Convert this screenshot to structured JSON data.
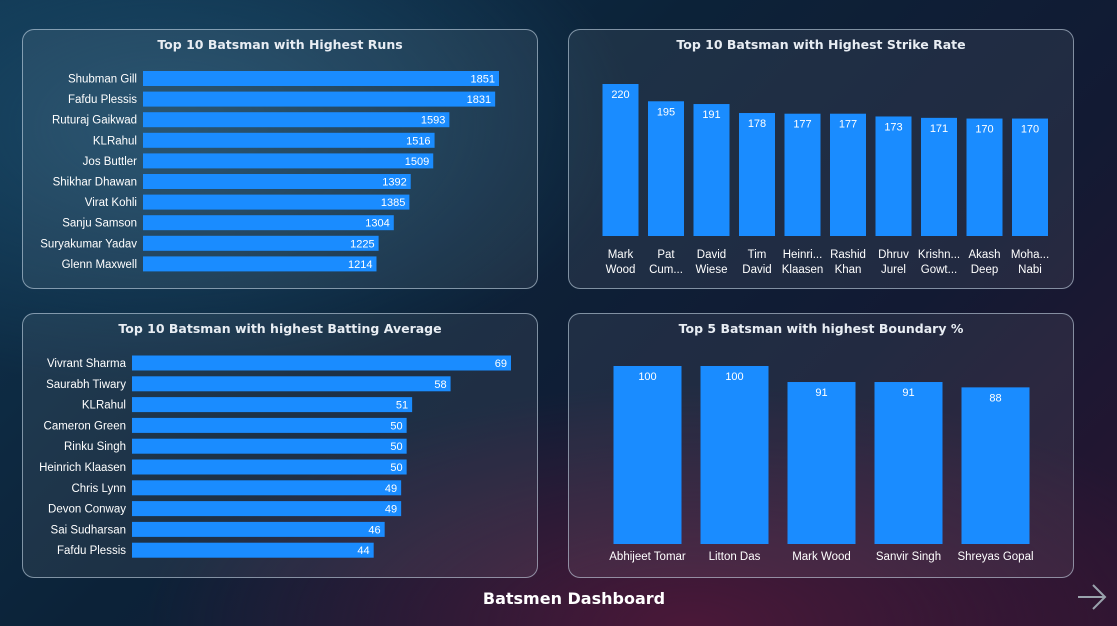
{
  "dashboard": {
    "title": "Batsmen Dashboard"
  },
  "colors": {
    "bar": "#1a8cff",
    "text": "#ffffff",
    "panel_border": "#d2e1f0"
  },
  "icons": {
    "next": "arrow-right-icon"
  },
  "chart_data": [
    {
      "type": "bar",
      "orientation": "horizontal",
      "title": "Top 10 Batsman with Highest Runs",
      "categories": [
        "Shubman Gill",
        "Fafdu Plessis",
        "Ruturaj Gaikwad",
        "KLRahul",
        "Jos Buttler",
        "Shikhar Dhawan",
        "Virat Kohli",
        "Sanju Samson",
        "Suryakumar Yadav",
        "Glenn Maxwell"
      ],
      "values": [
        1851,
        1831,
        1593,
        1516,
        1509,
        1392,
        1385,
        1304,
        1225,
        1214
      ],
      "xlabel": "",
      "ylabel": "",
      "grid": false
    },
    {
      "type": "bar",
      "orientation": "vertical",
      "title": "Top 10 Batsman with Highest Strike Rate",
      "categories": [
        [
          "Mark",
          "Wood"
        ],
        [
          "Pat",
          "Cum..."
        ],
        [
          "David",
          "Wiese"
        ],
        [
          "Tim",
          "David"
        ],
        [
          "Heinri...",
          "Klaasen"
        ],
        [
          "Rashid",
          "Khan"
        ],
        [
          "Dhruv",
          "Jurel"
        ],
        [
          "Krishn...",
          "Gowt..."
        ],
        [
          "Akash",
          "Deep"
        ],
        [
          "Moha...",
          "Nabi"
        ]
      ],
      "values": [
        220,
        195,
        191,
        178,
        177,
        177,
        173,
        171,
        170,
        170
      ],
      "xlabel": "",
      "ylabel": "",
      "grid": false
    },
    {
      "type": "bar",
      "orientation": "horizontal",
      "title": "Top 10 Batsman with highest Batting Average",
      "categories": [
        "Vivrant Sharma",
        "Saurabh Tiwary",
        "KLRahul",
        "Cameron Green",
        "Rinku Singh",
        "Heinrich Klaasen",
        "Chris Lynn",
        "Devon Conway",
        "Sai Sudharsan",
        "Fafdu Plessis"
      ],
      "values": [
        69,
        58,
        51,
        50,
        50,
        50,
        49,
        49,
        46,
        44
      ],
      "xlabel": "",
      "ylabel": "",
      "grid": false
    },
    {
      "type": "bar",
      "orientation": "vertical",
      "title": "Top 5 Batsman with highest Boundary %",
      "categories": [
        [
          "Abhijeet Tomar"
        ],
        [
          "Litton Das"
        ],
        [
          "Mark Wood"
        ],
        [
          "Sanvir Singh"
        ],
        [
          "Shreyas Gopal"
        ]
      ],
      "values": [
        100,
        100,
        91,
        91,
        88
      ],
      "xlabel": "",
      "ylabel": "",
      "grid": false
    }
  ]
}
